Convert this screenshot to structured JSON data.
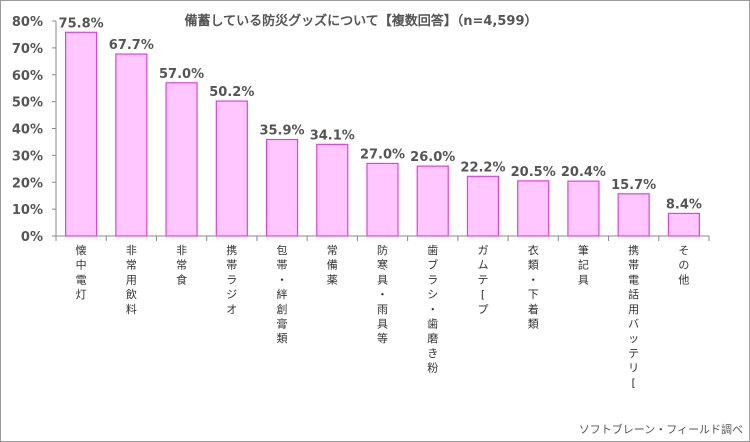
{
  "chart_data": {
    "type": "bar",
    "title": "備蓄している防災グッズについて【複数回答】（n=4,599）",
    "source": "ソフトブレーン・フィールド調べ",
    "categories": [
      "懐中電灯",
      "非常用飲料",
      "非常食",
      "携帯ラジオ",
      "包帯・絆創膏類",
      "常備薬",
      "防寒具・雨具等",
      "歯ブラシ・歯磨き粉",
      "ガムテ[プ",
      "衣類・下着類",
      "筆記具",
      "携帯電話用バッテリ[",
      "その他"
    ],
    "values": [
      75.8,
      67.7,
      57.0,
      50.2,
      35.9,
      34.1,
      27.0,
      26.0,
      22.2,
      20.5,
      20.4,
      15.7,
      8.4
    ],
    "value_labels": [
      "75.8%",
      "67.7%",
      "57.0%",
      "50.2%",
      "35.9%",
      "34.1%",
      "27.0%",
      "26.0%",
      "22.2%",
      "20.5%",
      "20.4%",
      "15.7%",
      "8.4%"
    ],
    "yticks": [
      "0%",
      "10%",
      "20%",
      "30%",
      "40%",
      "50%",
      "60%",
      "70%",
      "80%"
    ],
    "ylim": [
      0,
      80
    ],
    "grid": false,
    "legend": "none",
    "bar_fill": "#ffc6ff",
    "bar_stroke": "#e040e0",
    "axis_color": "#888888"
  }
}
